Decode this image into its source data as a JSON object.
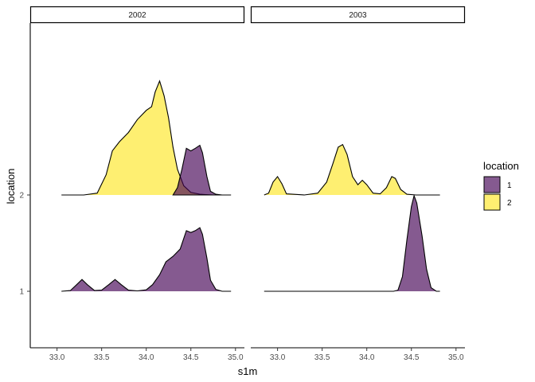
{
  "chart_data": {
    "type": "ridgeline-density",
    "xlabel": "s1m",
    "ylabel": "location",
    "xlim": [
      32.7,
      35.1
    ],
    "x_ticks": [
      "33.0",
      "33.5",
      "34.0",
      "34.5",
      "35.0"
    ],
    "y_categories": [
      "1",
      "2"
    ],
    "facets": [
      "2002",
      "2003"
    ],
    "legend": {
      "title": "location",
      "position": "right",
      "entries": [
        {
          "label": "1",
          "color": "#440154"
        },
        {
          "label": "2",
          "color": "#FDE725"
        }
      ]
    },
    "fill_alpha": 0.65,
    "series": [
      {
        "panel": "2002",
        "location": "1",
        "color": "#440154",
        "x_range": [
          33.05,
          34.95
        ],
        "points": [
          [
            33.05,
            0
          ],
          [
            33.15,
            0.02
          ],
          [
            33.22,
            0.18
          ],
          [
            33.28,
            0.32
          ],
          [
            33.34,
            0.18
          ],
          [
            33.42,
            0.02
          ],
          [
            33.5,
            0.03
          ],
          [
            33.58,
            0.18
          ],
          [
            33.65,
            0.32
          ],
          [
            33.72,
            0.18
          ],
          [
            33.8,
            0.03
          ],
          [
            33.9,
            0.01
          ],
          [
            34.0,
            0.04
          ],
          [
            34.07,
            0.18
          ],
          [
            34.15,
            0.45
          ],
          [
            34.22,
            0.8
          ],
          [
            34.3,
            0.95
          ],
          [
            34.38,
            1.15
          ],
          [
            34.45,
            1.65
          ],
          [
            34.5,
            1.6
          ],
          [
            34.55,
            1.65
          ],
          [
            34.6,
            1.73
          ],
          [
            34.63,
            1.55
          ],
          [
            34.68,
            0.9
          ],
          [
            34.72,
            0.3
          ],
          [
            34.78,
            0.05
          ],
          [
            34.85,
            0
          ],
          [
            34.95,
            0
          ]
        ]
      },
      {
        "panel": "2002",
        "location": "2",
        "color": "#FDE725",
        "x_range": [
          33.05,
          34.95
        ],
        "points": [
          [
            33.05,
            0
          ],
          [
            33.3,
            0
          ],
          [
            33.45,
            0.05
          ],
          [
            33.55,
            0.55
          ],
          [
            33.62,
            1.2
          ],
          [
            33.7,
            1.45
          ],
          [
            33.8,
            1.7
          ],
          [
            33.9,
            2.05
          ],
          [
            34.0,
            2.3
          ],
          [
            34.06,
            2.4
          ],
          [
            34.1,
            2.8
          ],
          [
            34.15,
            3.1
          ],
          [
            34.2,
            2.7
          ],
          [
            34.25,
            2.1
          ],
          [
            34.3,
            1.3
          ],
          [
            34.35,
            0.7
          ],
          [
            34.42,
            0.25
          ],
          [
            34.5,
            0.07
          ],
          [
            34.6,
            0.02
          ],
          [
            34.75,
            0
          ],
          [
            34.95,
            0
          ]
        ]
      },
      {
        "panel": "2002",
        "location": "2",
        "color": "#440154",
        "overlap_of": "location 1",
        "points": [
          [
            34.3,
            0
          ],
          [
            34.35,
            0.2
          ],
          [
            34.4,
            0.7
          ],
          [
            34.45,
            1.27
          ],
          [
            34.5,
            1.2
          ],
          [
            34.55,
            1.27
          ],
          [
            34.6,
            1.35
          ],
          [
            34.63,
            1.15
          ],
          [
            34.68,
            0.5
          ],
          [
            34.72,
            0.1
          ],
          [
            34.78,
            0.02
          ],
          [
            34.85,
            0
          ]
        ]
      },
      {
        "panel": "2003",
        "location": "1",
        "color": "#440154",
        "x_range": [
          32.85,
          34.82
        ],
        "points": [
          [
            32.85,
            0
          ],
          [
            34.3,
            0
          ],
          [
            34.35,
            0.03
          ],
          [
            34.4,
            0.4
          ],
          [
            34.45,
            1.4
          ],
          [
            34.5,
            2.3
          ],
          [
            34.53,
            2.6
          ],
          [
            34.56,
            2.4
          ],
          [
            34.62,
            1.5
          ],
          [
            34.67,
            0.6
          ],
          [
            34.72,
            0.1
          ],
          [
            34.78,
            0
          ],
          [
            34.82,
            0
          ]
        ]
      },
      {
        "panel": "2003",
        "location": "2",
        "color": "#FDE725",
        "x_range": [
          32.85,
          34.82
        ],
        "points": [
          [
            32.85,
            0
          ],
          [
            32.9,
            0.05
          ],
          [
            32.95,
            0.35
          ],
          [
            33.0,
            0.5
          ],
          [
            33.05,
            0.3
          ],
          [
            33.1,
            0.03
          ],
          [
            33.3,
            0
          ],
          [
            33.45,
            0.05
          ],
          [
            33.55,
            0.35
          ],
          [
            33.62,
            0.85
          ],
          [
            33.68,
            1.3
          ],
          [
            33.73,
            1.37
          ],
          [
            33.78,
            1.1
          ],
          [
            33.84,
            0.5
          ],
          [
            33.9,
            0.28
          ],
          [
            33.95,
            0.4
          ],
          [
            34.0,
            0.28
          ],
          [
            34.07,
            0.05
          ],
          [
            34.15,
            0.03
          ],
          [
            34.22,
            0.2
          ],
          [
            34.28,
            0.5
          ],
          [
            34.32,
            0.45
          ],
          [
            34.38,
            0.15
          ],
          [
            34.45,
            0.02
          ],
          [
            34.55,
            0
          ],
          [
            34.82,
            0
          ]
        ]
      }
    ]
  }
}
